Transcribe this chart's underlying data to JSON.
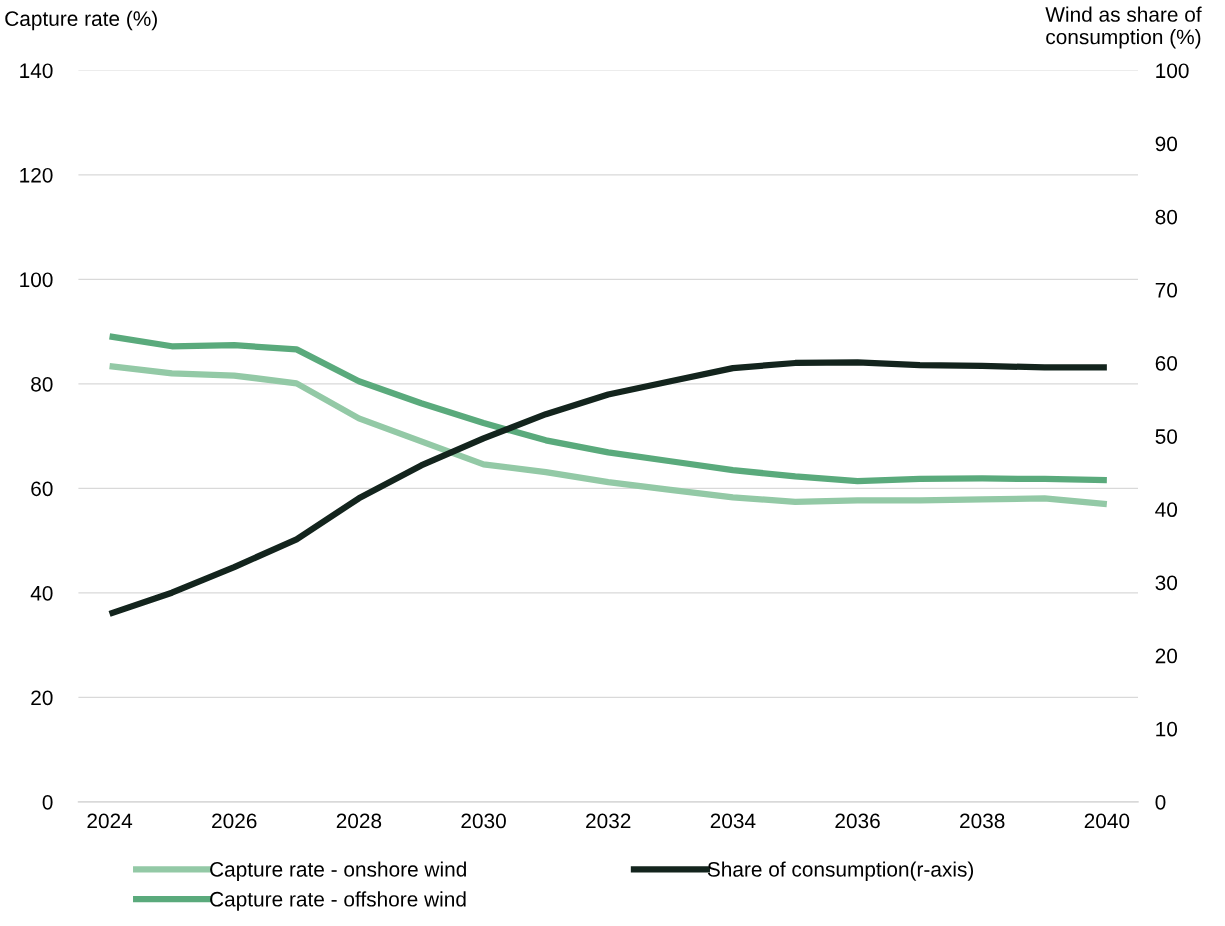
{
  "chart_data": {
    "type": "line",
    "ylabel": "Capture rate (%)",
    "y2label": "Wind as share of\nconsumption (%)",
    "x": [
      2024,
      2025,
      2026,
      2027,
      2028,
      2029,
      2030,
      2031,
      2032,
      2033,
      2034,
      2035,
      2036,
      2037,
      2038,
      2039,
      2040
    ],
    "series": [
      {
        "name": "Capture rate - onshore wind",
        "color": "#93c9a6",
        "values": [
          83.4,
          82.0,
          81.6,
          80.1,
          73.4,
          69.0,
          64.6,
          63.1,
          61.2,
          59.7,
          58.3,
          57.4,
          57.7,
          57.7,
          57.9,
          58.1,
          57.0
        ]
      },
      {
        "name": "Capture rate - offshore wind",
        "color": "#5aaa7c",
        "values": [
          89.1,
          87.2,
          87.4,
          86.6,
          80.5,
          76.3,
          72.5,
          69.2,
          66.9,
          65.2,
          63.5,
          62.3,
          61.4,
          61.8,
          61.9,
          61.8,
          61.6
        ]
      },
      {
        "name": "Share of consumption(r-axis)",
        "color": "#13241d",
        "axis": "y2",
        "values": [
          25.7,
          28.6,
          32.1,
          35.9,
          41.5,
          46.0,
          49.7,
          53.0,
          55.7,
          57.5,
          59.3,
          60.0,
          60.1,
          59.7,
          59.6,
          59.4,
          59.4
        ]
      }
    ],
    "xlim": [
      2023.5,
      2040.5
    ],
    "xticks": [
      2024,
      2026,
      2028,
      2030,
      2032,
      2034,
      2036,
      2038,
      2040
    ],
    "ylim": [
      0,
      140
    ],
    "yticks": [
      0,
      20,
      40,
      60,
      80,
      100,
      120,
      140
    ],
    "y2lim": [
      0,
      100
    ],
    "y2ticks": [
      0,
      10,
      20,
      30,
      40,
      50,
      60,
      70,
      80,
      90,
      100
    ],
    "grid": "y",
    "legend": "bottom",
    "marker": "none",
    "line_style": "solid"
  }
}
